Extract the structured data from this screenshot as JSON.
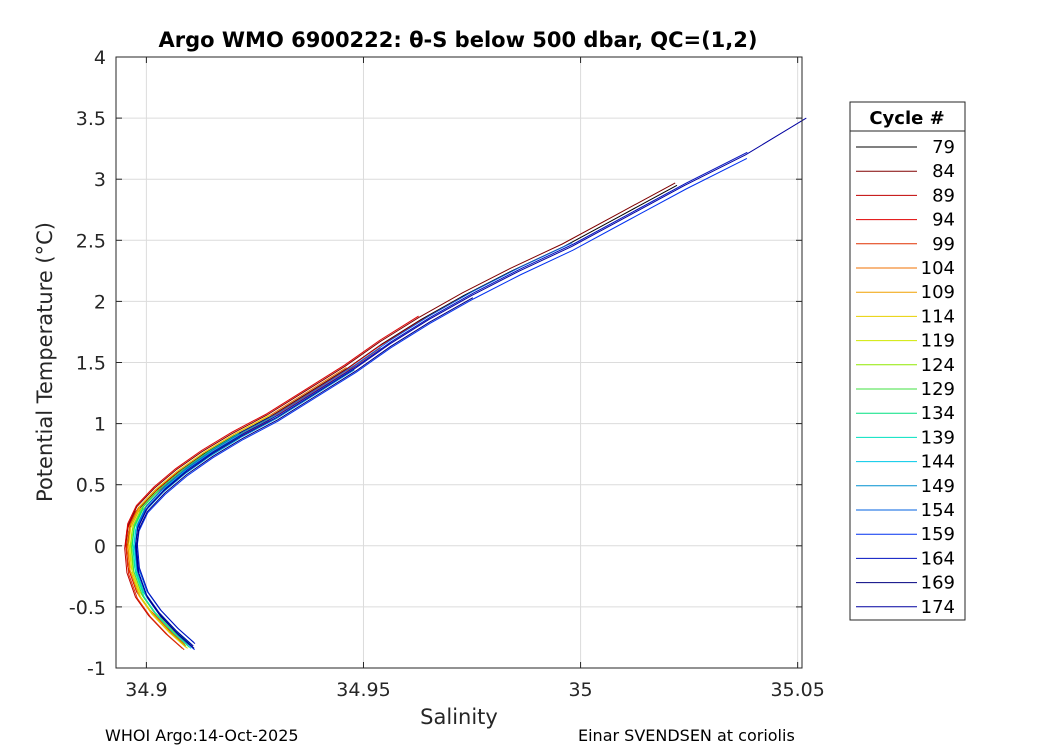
{
  "chart_data": {
    "type": "line",
    "title": "Argo WMO 6900222: θ-S below 500 dbar,  QC=(1,2)",
    "xlabel": "Salinity",
    "ylabel": "Potential Temperature (°C)",
    "xlim": [
      34.893,
      35.051
    ],
    "ylim": [
      -1,
      4
    ],
    "x_ticks": [
      34.9,
      34.95,
      35,
      35.05
    ],
    "x_tick_labels": [
      "34.9",
      "34.95",
      "35",
      "35.05"
    ],
    "y_ticks": [
      -1,
      -0.5,
      0,
      0.5,
      1,
      1.5,
      2,
      2.5,
      3,
      3.5,
      4
    ],
    "y_tick_labels": [
      "-1",
      "-0.5",
      "0",
      "0.5",
      "1",
      "1.5",
      "2",
      "2.5",
      "3",
      "3.5",
      "4"
    ],
    "grid": true,
    "legend": {
      "title": "Cycle #",
      "placement": "outside-right"
    },
    "base_profile": {
      "salinity": [
        34.9098,
        34.906,
        34.902,
        34.899,
        34.897,
        34.8965,
        34.897,
        34.899,
        34.903,
        34.908,
        34.914,
        34.921,
        34.929,
        34.938,
        34.947,
        34.955,
        34.964,
        34.974,
        34.985,
        34.997,
        35.01,
        35.023,
        35.037,
        35.051
      ],
      "theta": [
        -0.82,
        -0.7,
        -0.55,
        -0.4,
        -0.2,
        0.0,
        0.15,
        0.3,
        0.45,
        0.6,
        0.75,
        0.9,
        1.05,
        1.25,
        1.45,
        1.65,
        1.85,
        2.05,
        2.25,
        2.45,
        2.7,
        2.95,
        3.2,
        3.5
      ]
    },
    "series": [
      {
        "name": "79",
        "color": "#000000",
        "s_offset": -0.0008,
        "t_offset": 0.0,
        "theta_max": 3.0
      },
      {
        "name": "84",
        "color": "#800000",
        "s_offset": -0.0012,
        "t_offset": 0.02,
        "theta_max": 3.0
      },
      {
        "name": "89",
        "color": "#c00000",
        "s_offset": -0.0015,
        "t_offset": -0.02,
        "theta_max": 2.2
      },
      {
        "name": "94",
        "color": "#e00000",
        "s_offset": -0.0013,
        "t_offset": 0.03,
        "theta_max": 2.0
      },
      {
        "name": "99",
        "color": "#e03000",
        "s_offset": -0.0011,
        "t_offset": -0.03,
        "theta_max": 1.8
      },
      {
        "name": "104",
        "color": "#f07000",
        "s_offset": -0.0009,
        "t_offset": 0.01,
        "theta_max": 1.6
      },
      {
        "name": "109",
        "color": "#f0a000",
        "s_offset": -0.0007,
        "t_offset": -0.01,
        "theta_max": 1.4
      },
      {
        "name": "114",
        "color": "#e8d000",
        "s_offset": -0.0005,
        "t_offset": 0.02,
        "theta_max": 1.2
      },
      {
        "name": "119",
        "color": "#d0e800",
        "s_offset": -0.0003,
        "t_offset": -0.02,
        "theta_max": 1.0
      },
      {
        "name": "124",
        "color": "#90e800",
        "s_offset": -0.0001,
        "t_offset": 0.01,
        "theta_max": 1.0
      },
      {
        "name": "129",
        "color": "#40e040",
        "s_offset": 0.0001,
        "t_offset": -0.01,
        "theta_max": 1.0
      },
      {
        "name": "134",
        "color": "#00e080",
        "s_offset": 0.0003,
        "t_offset": 0.02,
        "theta_max": 1.0
      },
      {
        "name": "139",
        "color": "#00e0c0",
        "s_offset": 0.0005,
        "t_offset": -0.02,
        "theta_max": 1.0
      },
      {
        "name": "144",
        "color": "#00c8e8",
        "s_offset": 0.0007,
        "t_offset": 0.01,
        "theta_max": 1.2
      },
      {
        "name": "149",
        "color": "#0090d0",
        "s_offset": 0.0009,
        "t_offset": -0.01,
        "theta_max": 1.5
      },
      {
        "name": "154",
        "color": "#0060e0",
        "s_offset": 0.0011,
        "t_offset": 0.03,
        "theta_max": 2.6
      },
      {
        "name": "159",
        "color": "#0030f0",
        "s_offset": 0.0013,
        "t_offset": -0.03,
        "theta_max": 3.3
      },
      {
        "name": "164",
        "color": "#0010c0",
        "s_offset": 0.0014,
        "t_offset": 0.02,
        "theta_max": 3.4
      },
      {
        "name": "169",
        "color": "#000080",
        "s_offset": 0.0012,
        "t_offset": -0.02,
        "theta_max": 2.1
      },
      {
        "name": "174",
        "color": "#0000a0",
        "s_offset": 0.001,
        "t_offset": 0.0,
        "theta_max": 3.5
      }
    ]
  },
  "footer": {
    "left": "WHOI Argo:14-Oct-2025",
    "right": "Einar SVENDSEN at coriolis"
  }
}
